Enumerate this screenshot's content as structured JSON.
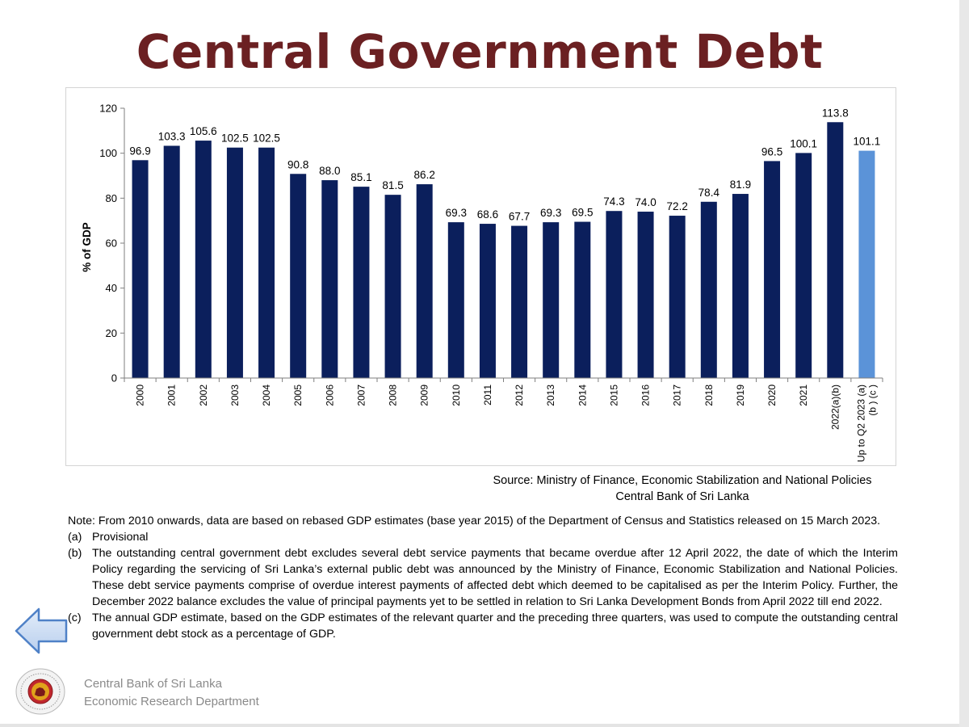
{
  "page": {
    "title": "Central Government Debt",
    "source_line1": "Source: Ministry of Finance, Economic Stabilization and National Policies",
    "source_line2": "Central Bank of Sri Lanka",
    "note_intro": "Note:  From 2010 onwards, data are based on rebased GDP estimates (base year 2015) of the Department of Census and Statistics released on 15 March 2023.",
    "footnotes": [
      {
        "marker": "(a)",
        "text": "Provisional"
      },
      {
        "marker": "(b)",
        "text": "The outstanding central government debt excludes several debt service payments that became overdue after 12 April 2022, the date of which the Interim Policy regarding the servicing of Sri Lanka’s external public debt was announced by the Ministry of Finance, Economic Stabilization and National Policies. These debt service payments comprise of overdue interest payments of affected debt which deemed to be capitalised as per the Interim Policy. Further, the December 2022 balance excludes the value of principal payments yet to be settled in relation to Sri Lanka Development Bonds from April 2022 till end 2022."
      },
      {
        "marker": "(c)",
        "text": "The annual GDP estimate, based on the GDP estimates of the relevant quarter and the preceding three quarters, was used to compute the outstanding central government debt stock as a percentage of GDP."
      }
    ],
    "org_line1": "Central Bank of Sri Lanka",
    "org_line2": "Economic Research Department",
    "icons": {
      "back": "left-arrow-icon",
      "logo": "central-bank-seal-icon"
    }
  },
  "chart_data": {
    "type": "bar",
    "title": "Central Government Debt",
    "xlabel": "",
    "ylabel": "% of GDP",
    "ylim": [
      0,
      120
    ],
    "yticks": [
      0,
      20,
      40,
      60,
      80,
      100,
      120
    ],
    "grid": false,
    "categories": [
      "2000",
      "2001",
      "2002",
      "2003",
      "2004",
      "2005",
      "2006",
      "2007",
      "2008",
      "2009",
      "2010",
      "2011",
      "2012",
      "2013",
      "2014",
      "2015",
      "2016",
      "2017",
      "2018",
      "2019",
      "2020",
      "2021",
      "2022(a)(b)",
      "Up to Q2 2023 (a) (b ) (c )"
    ],
    "values": [
      96.9,
      103.3,
      105.6,
      102.5,
      102.5,
      90.8,
      88.0,
      85.1,
      81.5,
      86.2,
      69.3,
      68.6,
      67.7,
      69.3,
      69.5,
      74.3,
      74.0,
      72.2,
      78.4,
      81.9,
      96.5,
      100.1,
      113.8,
      101.1
    ],
    "value_labels": [
      "96.9",
      "103.3",
      "105.6",
      "102.5",
      "102.5",
      "90.8",
      "88.0",
      "85.1",
      "81.5",
      "86.2",
      "69.3",
      "68.6",
      "67.7",
      "69.3",
      "69.5",
      "74.3",
      "74.0",
      "72.2",
      "78.4",
      "81.9",
      "96.5",
      "100.1",
      "113.8",
      "101.1"
    ],
    "colors": {
      "bar": "#0b1f5c",
      "highlight_bar": "#5b93d8",
      "axis": "#7f7f7f"
    },
    "highlight_index": 23
  }
}
